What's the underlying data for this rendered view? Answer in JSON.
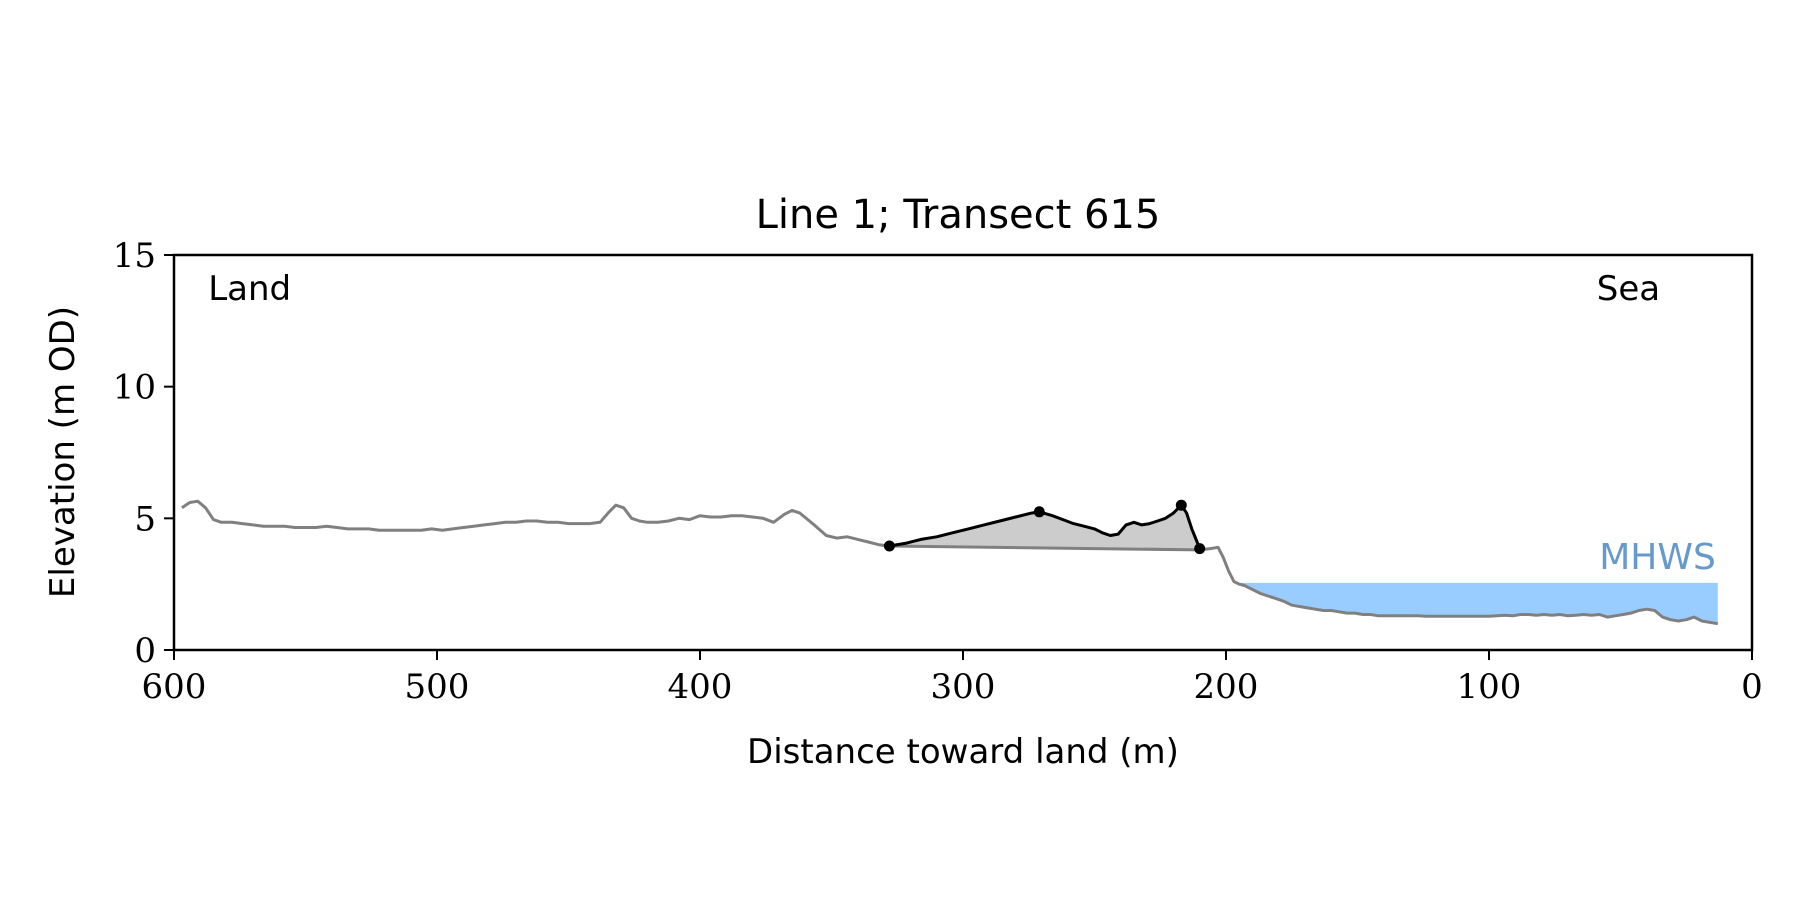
{
  "chart_data": {
    "type": "line",
    "title": "Line 1; Transect 615",
    "xlabel": "Distance toward land (m)",
    "ylabel": "Elevation (m OD)",
    "xlim": [
      600,
      0
    ],
    "ylim": [
      0,
      15
    ],
    "x_ticks": [
      600,
      500,
      400,
      300,
      200,
      100,
      0
    ],
    "y_ticks": [
      0,
      5,
      10,
      15
    ],
    "grid": false,
    "annotations": [
      {
        "text": "Land",
        "x": 587,
        "y": 13.3
      },
      {
        "text": "Sea",
        "x": 59,
        "y": 13.3
      }
    ],
    "colors": {
      "profile": "#808080",
      "dune": "#000000",
      "dune_fill": "#cccccc",
      "mhws_fill": "#99ccff",
      "mhws_text": "#6699cc"
    },
    "mhws": {
      "label": "MHWS",
      "level": 2.55,
      "x_start": 195,
      "x_end": 13
    },
    "profile": {
      "x": [
        597,
        594,
        591,
        588,
        585,
        582,
        578,
        574,
        570,
        566,
        562,
        558,
        554,
        550,
        546,
        542,
        538,
        534,
        530,
        526,
        522,
        518,
        514,
        510,
        506,
        502,
        498,
        494,
        490,
        486,
        482,
        478,
        474,
        470,
        466,
        462,
        458,
        454,
        450,
        446,
        442,
        438,
        435,
        432,
        429,
        426,
        423,
        420,
        416,
        412,
        408,
        404,
        400,
        396,
        392,
        388,
        384,
        380,
        376,
        372,
        368,
        365,
        362,
        359,
        356,
        352,
        348,
        344,
        340,
        336,
        332,
        328,
        210,
        206,
        203,
        201,
        199,
        197,
        195,
        193,
        190,
        187,
        184,
        181,
        178,
        175,
        172,
        169,
        166,
        163,
        160,
        157,
        154,
        151,
        148,
        145,
        142,
        139,
        136,
        133,
        130,
        127,
        124,
        121,
        118,
        115,
        112,
        109,
        106,
        103,
        100,
        97,
        94,
        91,
        88,
        85,
        82,
        79,
        76,
        73,
        70,
        67,
        64,
        61,
        58,
        55,
        52,
        49,
        46,
        43,
        40,
        37,
        34,
        31,
        28,
        25,
        22,
        19,
        16,
        13
      ],
      "y": [
        5.4,
        5.6,
        5.65,
        5.4,
        4.95,
        4.85,
        4.85,
        4.8,
        4.75,
        4.7,
        4.7,
        4.7,
        4.65,
        4.65,
        4.65,
        4.7,
        4.65,
        4.6,
        4.6,
        4.6,
        4.55,
        4.55,
        4.55,
        4.55,
        4.55,
        4.6,
        4.55,
        4.6,
        4.65,
        4.7,
        4.75,
        4.8,
        4.85,
        4.85,
        4.9,
        4.9,
        4.85,
        4.85,
        4.8,
        4.8,
        4.8,
        4.85,
        5.2,
        5.5,
        5.4,
        5.0,
        4.9,
        4.85,
        4.85,
        4.9,
        5.0,
        4.95,
        5.1,
        5.05,
        5.05,
        5.1,
        5.1,
        5.05,
        5.0,
        4.85,
        5.15,
        5.3,
        5.2,
        4.95,
        4.7,
        4.35,
        4.25,
        4.3,
        4.2,
        4.1,
        4.0,
        3.95,
        3.8,
        3.85,
        3.9,
        3.5,
        3.0,
        2.6,
        2.5,
        2.45,
        2.3,
        2.15,
        2.05,
        1.95,
        1.85,
        1.7,
        1.65,
        1.6,
        1.55,
        1.5,
        1.5,
        1.45,
        1.4,
        1.4,
        1.35,
        1.35,
        1.3,
        1.3,
        1.3,
        1.3,
        1.3,
        1.3,
        1.28,
        1.28,
        1.28,
        1.28,
        1.28,
        1.28,
        1.28,
        1.28,
        1.28,
        1.3,
        1.32,
        1.3,
        1.35,
        1.35,
        1.32,
        1.35,
        1.32,
        1.35,
        1.3,
        1.32,
        1.35,
        1.32,
        1.35,
        1.25,
        1.3,
        1.35,
        1.4,
        1.5,
        1.55,
        1.5,
        1.25,
        1.15,
        1.1,
        1.15,
        1.25,
        1.1,
        1.05,
        1.0
      ]
    },
    "dune_profile": {
      "x": [
        328,
        322,
        316,
        310,
        304,
        298,
        292,
        286,
        280,
        274,
        271,
        266,
        262,
        258,
        254,
        250,
        247,
        244,
        241,
        238,
        235,
        232,
        229,
        226,
        223,
        220,
        217,
        215,
        213,
        211,
        210
      ],
      "y": [
        3.95,
        4.05,
        4.2,
        4.3,
        4.45,
        4.6,
        4.75,
        4.9,
        5.05,
        5.2,
        5.25,
        5.1,
        4.95,
        4.8,
        4.7,
        4.6,
        4.45,
        4.35,
        4.4,
        4.75,
        4.85,
        4.75,
        4.8,
        4.9,
        5.0,
        5.2,
        5.5,
        5.2,
        4.6,
        4.1,
        3.85
      ]
    },
    "dune_base": {
      "x": [
        328,
        210
      ],
      "y": [
        3.95,
        3.8
      ]
    },
    "markers": [
      {
        "x": 328,
        "y": 3.95
      },
      {
        "x": 271,
        "y": 5.25
      },
      {
        "x": 217,
        "y": 5.5
      },
      {
        "x": 210,
        "y": 3.85
      }
    ]
  }
}
